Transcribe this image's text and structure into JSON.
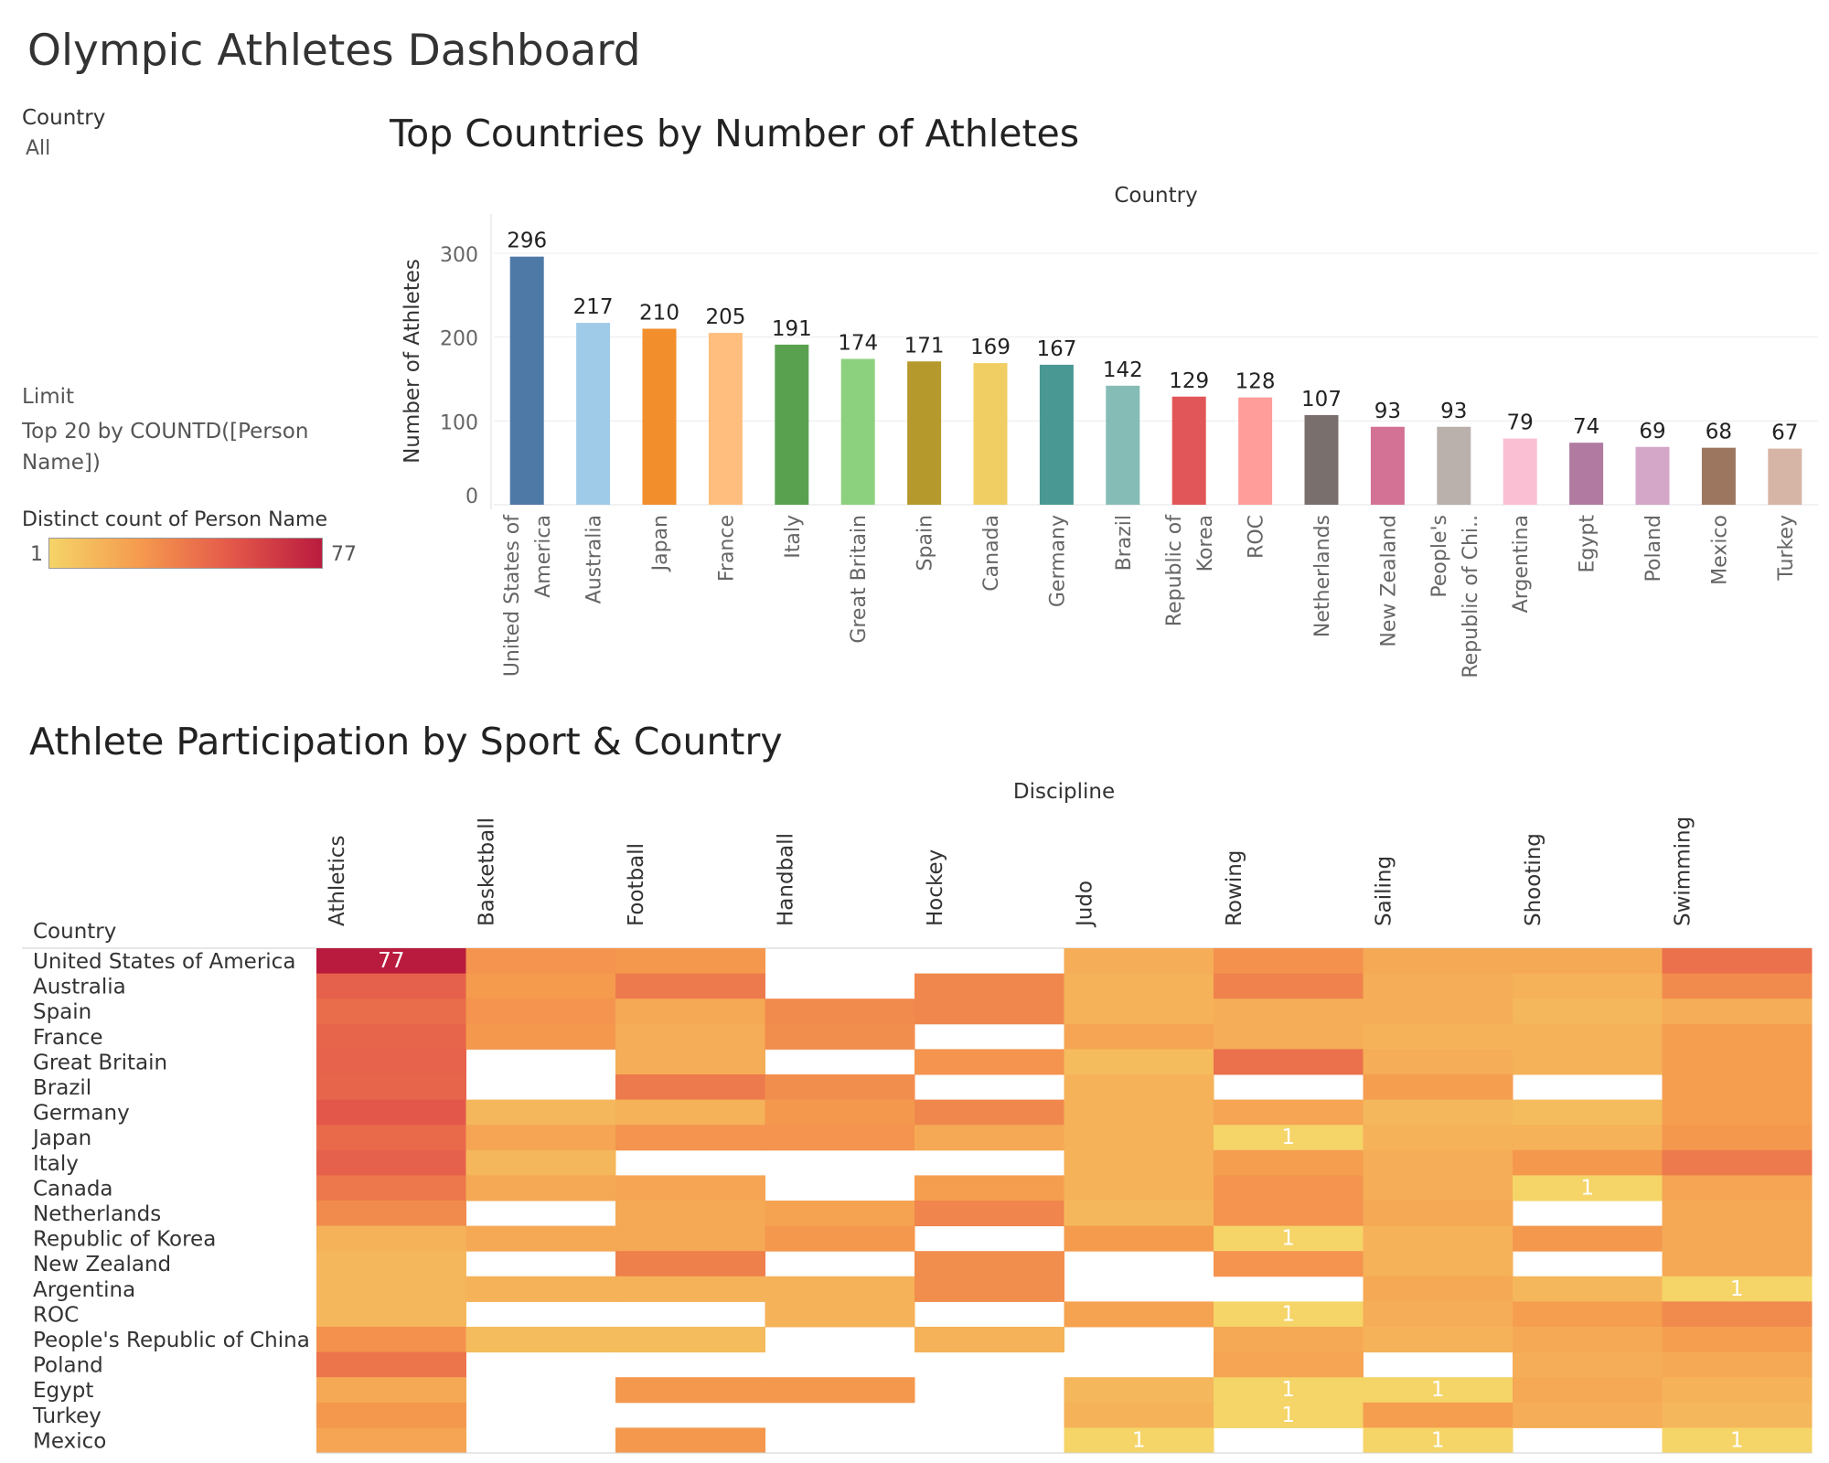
{
  "dashboard": {
    "title": "Olympic Athletes Dashboard",
    "filters": {
      "country_label": "Country",
      "country_value": "All",
      "limit_label": "Limit",
      "limit_value": "Top 20 by COUNTD([Person Name])"
    },
    "color_legend": {
      "title": "Distinct count of Person Name",
      "min": "1",
      "max": "77",
      "colors": [
        "#F5D468",
        "#F59A4E",
        "#E4584A",
        "#B91B3E"
      ]
    }
  },
  "chart_data": [
    {
      "type": "bar",
      "title": "Top Countries by Number of Athletes",
      "column_header": "Country",
      "ylabel": "Number of Athletes",
      "ylim": [
        0,
        300
      ],
      "yticks": [
        0,
        100,
        200,
        300
      ],
      "grid": true,
      "categories": [
        "United States of America",
        "Australia",
        "Japan",
        "France",
        "Italy",
        "Great Britain",
        "Spain",
        "Canada",
        "Germany",
        "Brazil",
        "Republic of Korea",
        "ROC",
        "Netherlands",
        "New Zealand",
        "People's Republic of China",
        "Argentina",
        "Egypt",
        "Poland",
        "Mexico",
        "Turkey"
      ],
      "tick_labels": [
        [
          "United States of",
          "America"
        ],
        [
          "Australia"
        ],
        [
          "Japan"
        ],
        [
          "France"
        ],
        [
          "Italy"
        ],
        [
          "Great Britain"
        ],
        [
          "Spain"
        ],
        [
          "Canada"
        ],
        [
          "Germany"
        ],
        [
          "Brazil"
        ],
        [
          "Republic of",
          "Korea"
        ],
        [
          "ROC"
        ],
        [
          "Netherlands"
        ],
        [
          "New Zealand"
        ],
        [
          "People's",
          "Republic of Chi.."
        ],
        [
          "Argentina"
        ],
        [
          "Egypt"
        ],
        [
          "Poland"
        ],
        [
          "Mexico"
        ],
        [
          "Turkey"
        ]
      ],
      "values": [
        296,
        217,
        210,
        205,
        191,
        174,
        171,
        169,
        167,
        142,
        129,
        128,
        107,
        93,
        93,
        79,
        74,
        69,
        68,
        67
      ],
      "colors": [
        "#4E79A7",
        "#A0CBE8",
        "#F28E2B",
        "#FFBE7D",
        "#59A14F",
        "#8CD17D",
        "#B6992D",
        "#F1CE63",
        "#499894",
        "#86BCB6",
        "#E15759",
        "#FF9D9A",
        "#79706E",
        "#D37295",
        "#BAB0AC",
        "#FABFD2",
        "#B07AA1",
        "#D4A6C8",
        "#9D7660",
        "#D7B5A6"
      ]
    },
    {
      "type": "heatmap",
      "title": "Athlete Participation by Sport & Country",
      "column_header": "Discipline",
      "row_header": "Country",
      "value_label": "Distinct count of Person Name",
      "range": [
        1,
        77
      ],
      "columns": [
        "Athletics",
        "Basketball",
        "Football",
        "Handball",
        "Hockey",
        "Judo",
        "Rowing",
        "Sailing",
        "Shooting",
        "Swimming"
      ],
      "rows": [
        "United States of America",
        "Australia",
        "Spain",
        "France",
        "Great Britain",
        "Brazil",
        "Germany",
        "Japan",
        "Italy",
        "Canada",
        "Netherlands",
        "Republic of Korea",
        "New Zealand",
        "Argentina",
        "ROC",
        "People's Republic of China",
        "Poland",
        "Egypt",
        "Turkey",
        "Mexico"
      ],
      "values": [
        [
          77,
          13,
          12,
          null,
          null,
          6,
          14,
          7,
          7,
          26
        ],
        [
          33,
          11,
          22,
          null,
          17,
          5,
          19,
          6,
          5,
          16
        ],
        [
          28,
          13,
          7,
          16,
          17,
          5,
          6,
          6,
          4,
          6
        ],
        [
          31,
          12,
          6,
          15,
          null,
          8,
          6,
          5,
          5,
          10
        ],
        [
          32,
          null,
          6,
          null,
          13,
          3,
          26,
          6,
          5,
          10
        ],
        [
          31,
          null,
          22,
          15,
          null,
          5,
          null,
          10,
          null,
          10
        ],
        [
          38,
          4,
          5,
          12,
          17,
          5,
          8,
          4,
          3,
          10
        ],
        [
          29,
          8,
          13,
          13,
          7,
          5,
          1,
          5,
          5,
          12
        ],
        [
          33,
          4,
          null,
          null,
          null,
          5,
          10,
          6,
          12,
          22
        ],
        [
          23,
          7,
          8,
          null,
          10,
          5,
          13,
          6,
          1,
          8
        ],
        [
          16,
          null,
          7,
          9,
          18,
          4,
          13,
          7,
          null,
          7
        ],
        [
          5,
          7,
          7,
          12,
          null,
          11,
          1,
          5,
          12,
          7
        ],
        [
          4,
          null,
          20,
          null,
          15,
          null,
          13,
          5,
          null,
          7
        ],
        [
          4,
          5,
          5,
          5,
          15,
          null,
          null,
          7,
          4,
          1
        ],
        [
          4,
          null,
          null,
          5,
          null,
          9,
          1,
          6,
          10,
          16
        ],
        [
          14,
          3,
          3,
          null,
          5,
          null,
          7,
          5,
          7,
          10
        ],
        [
          24,
          null,
          null,
          null,
          null,
          null,
          8,
          null,
          6,
          7
        ],
        [
          7,
          null,
          12,
          12,
          null,
          4,
          1,
          1,
          7,
          5
        ],
        [
          12,
          null,
          null,
          null,
          null,
          5,
          1,
          10,
          6,
          4
        ],
        [
          8,
          null,
          12,
          null,
          null,
          1,
          null,
          1,
          null,
          1
        ]
      ]
    }
  ]
}
